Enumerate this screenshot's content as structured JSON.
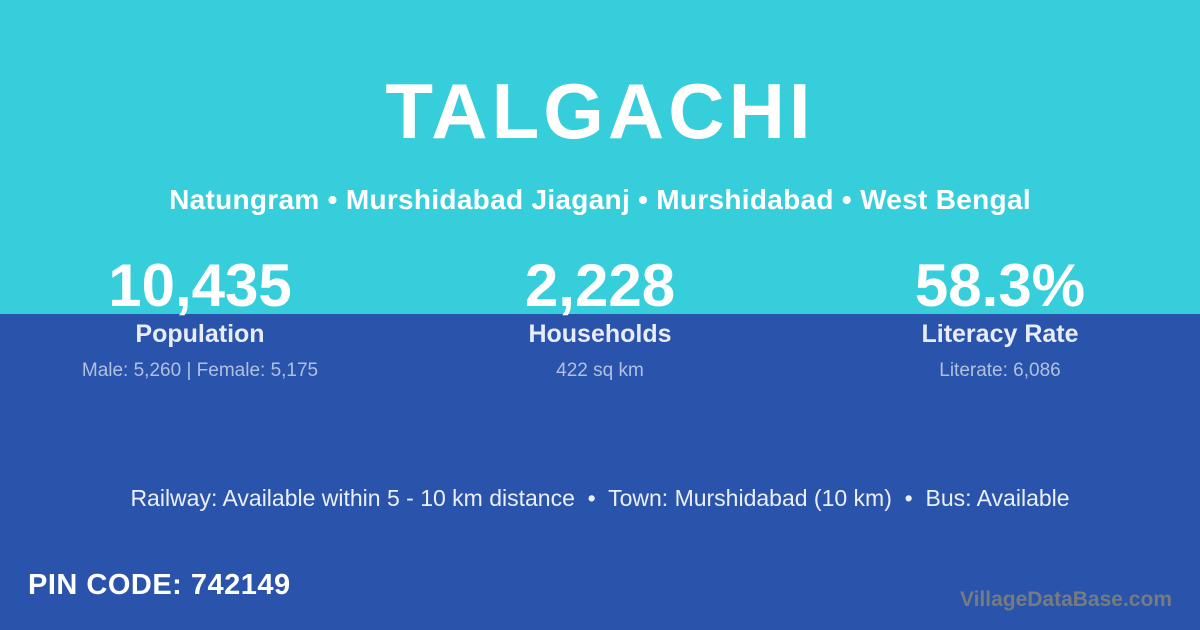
{
  "colors": {
    "cyan": "#37CEDC",
    "blue": "#2A54AC",
    "label": "#E7ECF6",
    "detail": "#AFC1E1",
    "amenities": "#EAEFF9",
    "watermark": "#767B7F"
  },
  "header": {
    "title": "TALGACHI",
    "breadcrumb": "Natungram • Murshidabad Jiaganj • Murshidabad • West Bengal"
  },
  "stats": [
    {
      "value": "10,435",
      "label": "Population",
      "detail": "Male: 5,260 | Female: 5,175"
    },
    {
      "value": "2,228",
      "label": "Households",
      "detail": "422 sq km"
    },
    {
      "value": "58.3%",
      "label": "Literacy Rate",
      "detail": "Literate: 6,086"
    }
  ],
  "amenities": {
    "text": "Railway: Available within 5 - 10 km distance  •  Town: Murshidabad (10 km)  •  Bus: Available"
  },
  "footer": {
    "pin_code": "PIN CODE: 742149",
    "watermark": "VillageDataBase.com"
  }
}
